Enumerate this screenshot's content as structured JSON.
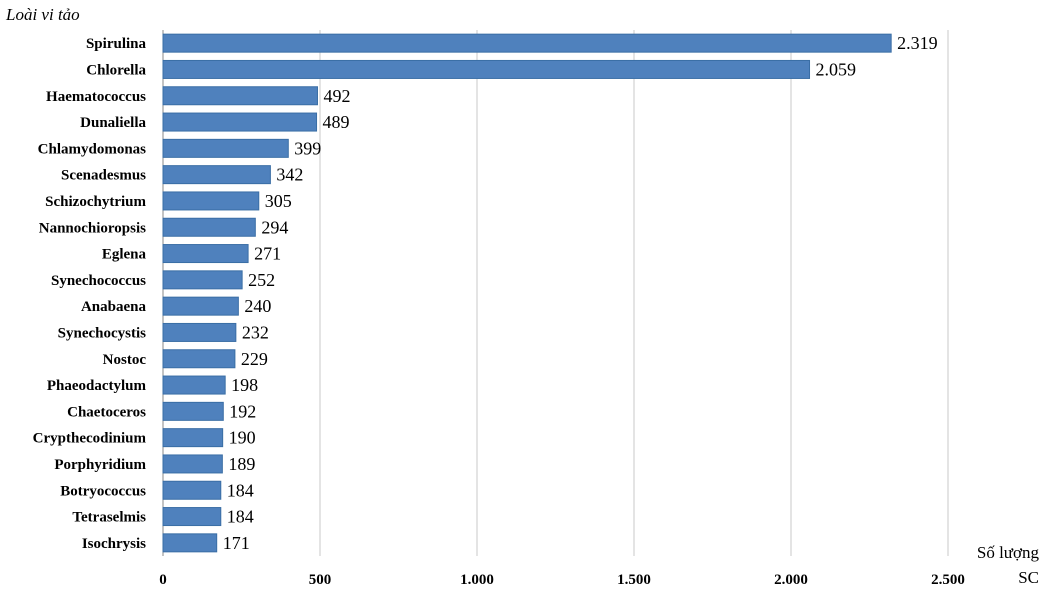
{
  "chart_data": {
    "type": "bar",
    "orientation": "horizontal",
    "ylabel": "Loài vi tảo",
    "xlabel": [
      "Số lượng",
      "SC"
    ],
    "categories": [
      "Spirulina",
      "Chlorella",
      "Haematococcus",
      "Dunaliella",
      "Chlamydomonas",
      "Scenadesmus",
      "Schizochytrium",
      "Nannochioropsis",
      "Eglena",
      "Synechococcus",
      "Anabaena",
      "Synechocystis",
      "Nostoc",
      "Phaeodactylum",
      "Chaetoceros",
      "Crypthecodinium",
      "Porphyridium",
      "Botryococcus",
      "Tetraselmis",
      "Isochrysis"
    ],
    "values": [
      2319,
      2059,
      492,
      489,
      399,
      342,
      305,
      294,
      271,
      252,
      240,
      232,
      229,
      198,
      192,
      190,
      189,
      184,
      184,
      171
    ],
    "value_labels": [
      "2.319",
      "2.059",
      "492",
      "489",
      "399",
      "342",
      "305",
      "294",
      "271",
      "252",
      "240",
      "232",
      "229",
      "198",
      "192",
      "190",
      "189",
      "184",
      "184",
      "171"
    ],
    "xlim": [
      0,
      2500
    ],
    "xticks": [
      0,
      500,
      1000,
      1500,
      2000,
      2500
    ],
    "xtick_labels": [
      "0",
      "500",
      "1.000",
      "1.500",
      "2.000",
      "2.500"
    ],
    "grid": true,
    "bar_color": "#4f81bd",
    "bar_edge_color": "#3a6ea5",
    "grid_color": "#c8c8c8"
  }
}
